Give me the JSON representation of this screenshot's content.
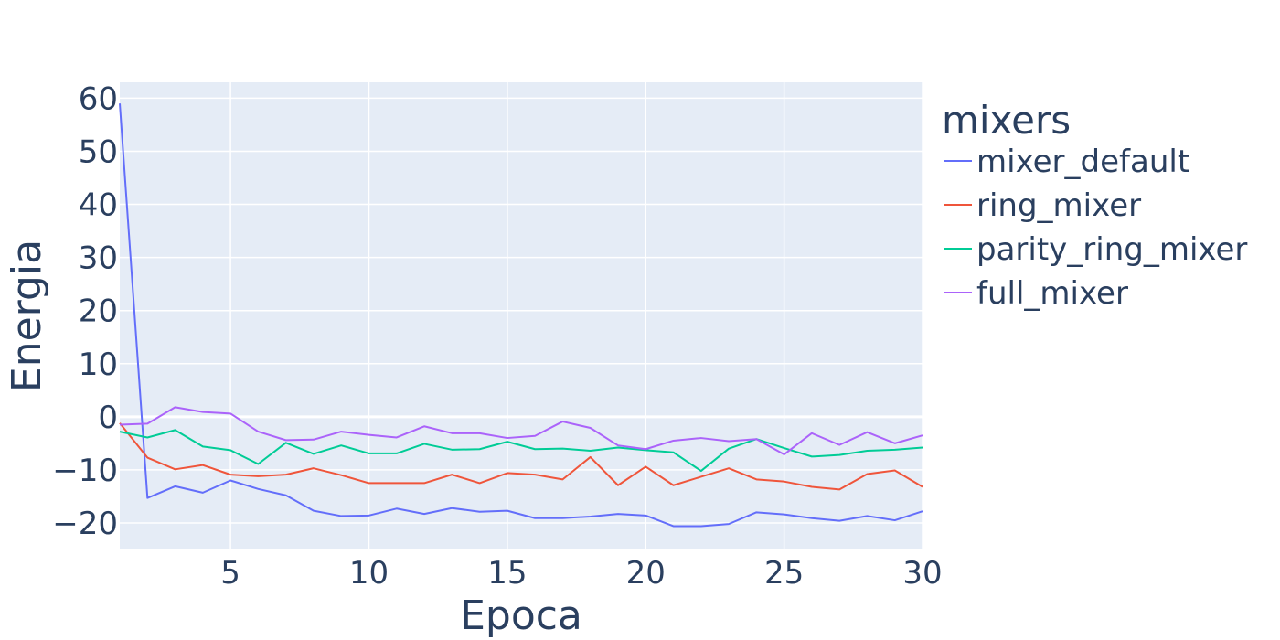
{
  "chart_data": {
    "type": "line",
    "xlabel": "Epoca",
    "ylabel": "Energia",
    "xlim": [
      1,
      30
    ],
    "ylim": [
      -25,
      63
    ],
    "x_ticks": [
      5,
      10,
      15,
      20,
      25,
      30
    ],
    "y_ticks": [
      -20,
      -10,
      0,
      10,
      20,
      30,
      40,
      50,
      60
    ],
    "x_tick_labels": [
      "5",
      "10",
      "15",
      "20",
      "25",
      "30"
    ],
    "y_tick_labels": [
      "−20",
      "−10",
      "0",
      "10",
      "20",
      "30",
      "40",
      "50",
      "60"
    ],
    "grid": true,
    "plot_background": "#e5ecf6",
    "legend": {
      "title": "mixers",
      "placement": "right"
    },
    "x": [
      1,
      2,
      3,
      4,
      5,
      6,
      7,
      8,
      9,
      10,
      11,
      12,
      13,
      14,
      15,
      16,
      17,
      18,
      19,
      20,
      21,
      22,
      23,
      24,
      25,
      26,
      27,
      28,
      29,
      30
    ],
    "series": [
      {
        "name": "mixer_default",
        "color": "#636efa",
        "values": [
          59,
          -15.3,
          -13.1,
          -14.3,
          -12,
          -13.6,
          -14.8,
          -17.7,
          -18.7,
          -18.6,
          -17.3,
          -18.3,
          -17.2,
          -17.9,
          -17.7,
          -19.1,
          -19.1,
          -18.8,
          -18.3,
          -18.6,
          -20.6,
          -20.6,
          -20.2,
          -18,
          -18.4,
          -19.1,
          -19.6,
          -18.7,
          -19.5,
          -17.8
        ]
      },
      {
        "name": "ring_mixer",
        "color": "#ef553b",
        "values": [
          -1.2,
          -7.7,
          -9.9,
          -9.1,
          -10.9,
          -11.2,
          -10.9,
          -9.7,
          -11,
          -12.5,
          -12.5,
          -12.5,
          -10.9,
          -12.5,
          -10.6,
          -10.9,
          -11.8,
          -7.6,
          -12.9,
          -9.4,
          -12.9,
          -11.3,
          -9.7,
          -11.8,
          -12.2,
          -13.2,
          -13.7,
          -10.8,
          -10.1,
          -13.2
        ]
      },
      {
        "name": "parity_ring_mixer",
        "color": "#00cc96",
        "values": [
          -2.8,
          -3.9,
          -2.5,
          -5.6,
          -6.3,
          -8.9,
          -4.9,
          -7,
          -5.4,
          -6.9,
          -6.9,
          -5.1,
          -6.2,
          -6.1,
          -4.7,
          -6.1,
          -6,
          -6.4,
          -5.8,
          -6.3,
          -6.7,
          -10.2,
          -6,
          -4.2,
          -5.9,
          -7.5,
          -7.2,
          -6.4,
          -6.2,
          -5.8
        ]
      },
      {
        "name": "full_mixer",
        "color": "#ab63fa",
        "values": [
          -1.5,
          -1.3,
          1.8,
          0.9,
          0.6,
          -2.8,
          -4.4,
          -4.3,
          -2.8,
          -3.4,
          -3.9,
          -1.8,
          -3.1,
          -3.1,
          -4,
          -3.6,
          -0.9,
          -2.1,
          -5.4,
          -6.1,
          -4.5,
          -4,
          -4.6,
          -4.2,
          -7.1,
          -3.1,
          -5.3,
          -2.9,
          -5,
          -3.5
        ]
      }
    ]
  }
}
